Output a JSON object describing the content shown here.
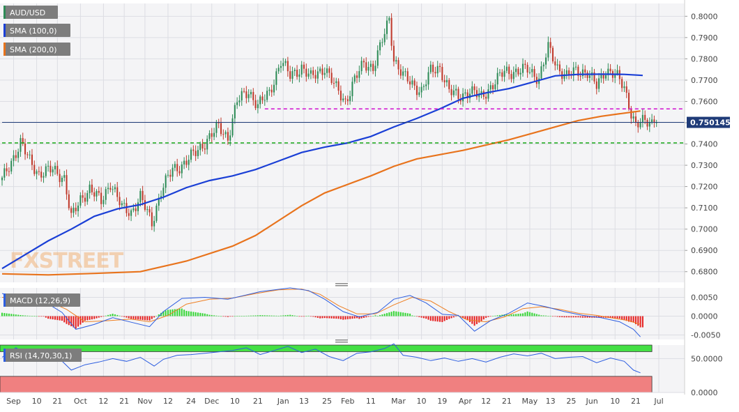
{
  "colors": {
    "background": "#ffffff",
    "panel": "#f4f4f6",
    "grid": "#dcdde3",
    "axis_text": "#444444",
    "bull": "#2e8b57",
    "bear": "#c0392b",
    "sma100": "#1a3fd6",
    "sma200": "#e8731c",
    "level_magenta": "#d21fd2",
    "level_green": "#17a817",
    "last_price_line": "#1f3b78",
    "last_price_tag": "#1f3b78",
    "macd_line": "#2c5de0",
    "signal_line": "#ee7f22",
    "hist_pos": "#36d636",
    "hist_neg": "#e62020",
    "rsi_line": "#2c5de0",
    "rsi_overbought_zone": "#44e044",
    "rsi_oversold_zone": "#f08080"
  },
  "legend": {
    "symbol": "AUD/USD",
    "sma100": "SMA (100,0)",
    "sma200": "SMA (200,0)",
    "macd": "MACD (12,26,9)",
    "rsi": "RSI (14,70,30,1)"
  },
  "watermark": "FXSTREET",
  "last_price_label": "0.750145",
  "chart_data": [
    {
      "type": "candlestick",
      "panel": "price",
      "ylim": [
        0.675,
        0.806
      ],
      "y_ticks": [
        "0.6800",
        "0.6900",
        "0.7000",
        "0.7100",
        "0.7200",
        "0.7300",
        "0.7400",
        "0.7500",
        "0.7600",
        "0.7700",
        "0.7800",
        "0.7900",
        "0.8000"
      ],
      "y_tick_values": [
        0.68,
        0.69,
        0.7,
        0.71,
        0.72,
        0.73,
        0.74,
        0.75,
        0.76,
        0.77,
        0.78,
        0.79,
        0.8
      ],
      "x_tick_labels": [
        "Sep",
        "10",
        "21",
        "Oct",
        "12",
        "21",
        "Nov",
        "12",
        "24",
        "Dec",
        "10",
        "21",
        "Jan",
        "13",
        "25",
        "Feb",
        "11",
        "Mar",
        "10",
        "19",
        "Apr",
        "12",
        "21",
        "May",
        "13",
        "25",
        "Jun",
        "10",
        "21",
        "Jul"
      ],
      "x_tick_index": [
        5,
        15,
        24,
        34,
        44,
        53,
        62,
        72,
        82,
        91,
        101,
        111,
        122,
        131,
        141,
        150,
        160,
        172,
        182,
        191,
        201,
        210,
        219,
        229,
        238,
        247,
        256,
        266,
        275,
        285
      ],
      "n_bars": 285,
      "close_path": [
        [
          0,
          0.723
        ],
        [
          5,
          0.734
        ],
        [
          8,
          0.7405
        ],
        [
          12,
          0.732
        ],
        [
          16,
          0.726
        ],
        [
          22,
          0.728
        ],
        [
          27,
          0.724
        ],
        [
          30,
          0.705
        ],
        [
          34,
          0.714
        ],
        [
          38,
          0.719
        ],
        [
          43,
          0.713
        ],
        [
          47,
          0.722
        ],
        [
          52,
          0.71
        ],
        [
          56,
          0.708
        ],
        [
          60,
          0.715
        ],
        [
          65,
          0.703
        ],
        [
          69,
          0.718
        ],
        [
          74,
          0.728
        ],
        [
          78,
          0.73
        ],
        [
          84,
          0.736
        ],
        [
          89,
          0.742
        ],
        [
          94,
          0.748
        ],
        [
          98,
          0.743
        ],
        [
          102,
          0.76
        ],
        [
          107,
          0.765
        ],
        [
          111,
          0.758
        ],
        [
          116,
          0.764
        ],
        [
          121,
          0.779
        ],
        [
          125,
          0.772
        ],
        [
          130,
          0.776
        ],
        [
          134,
          0.771
        ],
        [
          140,
          0.776
        ],
        [
          145,
          0.766
        ],
        [
          149,
          0.76
        ],
        [
          153,
          0.77
        ],
        [
          157,
          0.778
        ],
        [
          161,
          0.776
        ],
        [
          164,
          0.785
        ],
        [
          168,
          0.799
        ],
        [
          170,
          0.78
        ],
        [
          174,
          0.772
        ],
        [
          178,
          0.768
        ],
        [
          182,
          0.765
        ],
        [
          186,
          0.774
        ],
        [
          190,
          0.776
        ],
        [
          194,
          0.765
        ],
        [
          198,
          0.762
        ],
        [
          203,
          0.765
        ],
        [
          208,
          0.762
        ],
        [
          213,
          0.768
        ],
        [
          218,
          0.774
        ],
        [
          223,
          0.774
        ],
        [
          228,
          0.775
        ],
        [
          233,
          0.771
        ],
        [
          237,
          0.785
        ],
        [
          241,
          0.776
        ],
        [
          245,
          0.772
        ],
        [
          249,
          0.774
        ],
        [
          254,
          0.774
        ],
        [
          258,
          0.767
        ],
        [
          262,
          0.775
        ],
        [
          266,
          0.773
        ],
        [
          270,
          0.766
        ],
        [
          273,
          0.755
        ],
        [
          275,
          0.7492
        ],
        [
          277,
          0.7501
        ]
      ],
      "sma100": [
        [
          0,
          0.6815
        ],
        [
          10,
          0.688
        ],
        [
          20,
          0.6945
        ],
        [
          30,
          0.7
        ],
        [
          40,
          0.706
        ],
        [
          50,
          0.7095
        ],
        [
          60,
          0.7115
        ],
        [
          70,
          0.715
        ],
        [
          80,
          0.7195
        ],
        [
          90,
          0.7228
        ],
        [
          100,
          0.725
        ],
        [
          110,
          0.728
        ],
        [
          120,
          0.732
        ],
        [
          130,
          0.736
        ],
        [
          140,
          0.7385
        ],
        [
          150,
          0.7405
        ],
        [
          160,
          0.7435
        ],
        [
          170,
          0.748
        ],
        [
          180,
          0.752
        ],
        [
          190,
          0.7565
        ],
        [
          200,
          0.7615
        ],
        [
          210,
          0.764
        ],
        [
          220,
          0.766
        ],
        [
          230,
          0.769
        ],
        [
          240,
          0.772
        ],
        [
          250,
          0.7727
        ],
        [
          260,
          0.7728
        ],
        [
          270,
          0.7727
        ],
        [
          278,
          0.7722
        ]
      ],
      "sma200": [
        [
          0,
          0.679
        ],
        [
          20,
          0.6785
        ],
        [
          40,
          0.6792
        ],
        [
          60,
          0.68
        ],
        [
          80,
          0.685
        ],
        [
          100,
          0.692
        ],
        [
          110,
          0.697
        ],
        [
          120,
          0.704
        ],
        [
          130,
          0.711
        ],
        [
          140,
          0.717
        ],
        [
          150,
          0.721
        ],
        [
          160,
          0.725
        ],
        [
          170,
          0.7295
        ],
        [
          180,
          0.733
        ],
        [
          190,
          0.735
        ],
        [
          200,
          0.737
        ],
        [
          210,
          0.7395
        ],
        [
          220,
          0.742
        ],
        [
          230,
          0.745
        ],
        [
          240,
          0.748
        ],
        [
          250,
          0.751
        ],
        [
          260,
          0.753
        ],
        [
          270,
          0.7545
        ],
        [
          277,
          0.7555
        ]
      ],
      "levels": [
        {
          "name": "resistance-magenta",
          "value": 0.7565,
          "from_bar": 114,
          "style": "dashed"
        },
        {
          "name": "support-green",
          "value": 0.7405,
          "from_bar": 0,
          "style": "dashed"
        },
        {
          "name": "last-price",
          "value": 0.750145,
          "from_bar": 0,
          "style": "solid"
        }
      ]
    },
    {
      "type": "line",
      "panel": "macd",
      "ylim": [
        -0.0062,
        0.0075
      ],
      "y_ticks": [
        "0.0050",
        "0.0000",
        "-0.0050"
      ],
      "y_tick_values": [
        0.005,
        0.0,
        -0.005
      ],
      "macd": [
        [
          0,
          0.006
        ],
        [
          8,
          0.005
        ],
        [
          18,
          0.004
        ],
        [
          26,
          0.001
        ],
        [
          32,
          -0.0035
        ],
        [
          40,
          -0.0022
        ],
        [
          48,
          -0.0004
        ],
        [
          56,
          -0.0016
        ],
        [
          64,
          -0.0028
        ],
        [
          70,
          0.0012
        ],
        [
          78,
          0.0047
        ],
        [
          88,
          0.005
        ],
        [
          98,
          0.0045
        ],
        [
          105,
          0.0055
        ],
        [
          112,
          0.0065
        ],
        [
          125,
          0.0075
        ],
        [
          133,
          0.0068
        ],
        [
          140,
          0.0045
        ],
        [
          148,
          0.0012
        ],
        [
          155,
          -0.0002
        ],
        [
          163,
          0.001
        ],
        [
          170,
          0.0045
        ],
        [
          177,
          0.0055
        ],
        [
          184,
          0.0035
        ],
        [
          191,
          0.0005
        ],
        [
          198,
          0.0002
        ],
        [
          205,
          -0.004
        ],
        [
          212,
          -0.0012
        ],
        [
          220,
          0.0008
        ],
        [
          228,
          0.0035
        ],
        [
          236,
          0.0025
        ],
        [
          244,
          0.0012
        ],
        [
          252,
          0.0002
        ],
        [
          260,
          -0.0004
        ],
        [
          268,
          -0.0015
        ],
        [
          274,
          -0.0035
        ],
        [
          277,
          -0.0055
        ]
      ],
      "signal": [
        [
          0,
          0.005
        ],
        [
          10,
          0.0046
        ],
        [
          20,
          0.004
        ],
        [
          28,
          0.0018
        ],
        [
          36,
          -0.0015
        ],
        [
          46,
          -0.0012
        ],
        [
          56,
          -0.0008
        ],
        [
          64,
          -0.0015
        ],
        [
          72,
          0.0002
        ],
        [
          80,
          0.0032
        ],
        [
          90,
          0.0045
        ],
        [
          100,
          0.0048
        ],
        [
          110,
          0.006
        ],
        [
          120,
          0.007
        ],
        [
          130,
          0.0072
        ],
        [
          138,
          0.0058
        ],
        [
          146,
          0.0028
        ],
        [
          154,
          0.0006
        ],
        [
          162,
          0.0006
        ],
        [
          170,
          0.003
        ],
        [
          178,
          0.005
        ],
        [
          186,
          0.004
        ],
        [
          194,
          0.0012
        ],
        [
          202,
          -0.001
        ],
        [
          210,
          -0.0015
        ],
        [
          218,
          -0.0002
        ],
        [
          226,
          0.002
        ],
        [
          234,
          0.0025
        ],
        [
          242,
          0.0018
        ],
        [
          250,
          0.0008
        ],
        [
          258,
          0.0002
        ],
        [
          266,
          -0.0006
        ],
        [
          272,
          -0.0012
        ],
        [
          277,
          -0.0022
        ]
      ]
    },
    {
      "type": "line",
      "panel": "rsi",
      "ylim": [
        0,
        70
      ],
      "y_ticks": [
        "50.0000",
        "0.0000"
      ],
      "y_tick_values": [
        50,
        0
      ],
      "overbought": 70,
      "oversold": 30,
      "rsi": [
        [
          0,
          52
        ],
        [
          6,
          66
        ],
        [
          12,
          54
        ],
        [
          18,
          46
        ],
        [
          24,
          53
        ],
        [
          30,
          33
        ],
        [
          36,
          41
        ],
        [
          42,
          45
        ],
        [
          48,
          50
        ],
        [
          54,
          46
        ],
        [
          60,
          52
        ],
        [
          66,
          39
        ],
        [
          70,
          49
        ],
        [
          76,
          55
        ],
        [
          82,
          56
        ],
        [
          88,
          58
        ],
        [
          94,
          60
        ],
        [
          100,
          62
        ],
        [
          106,
          66
        ],
        [
          112,
          56
        ],
        [
          118,
          62
        ],
        [
          124,
          68
        ],
        [
          130,
          59
        ],
        [
          136,
          64
        ],
        [
          142,
          53
        ],
        [
          148,
          47
        ],
        [
          154,
          58
        ],
        [
          160,
          60
        ],
        [
          166,
          65
        ],
        [
          170,
          72
        ],
        [
          174,
          55
        ],
        [
          180,
          52
        ],
        [
          186,
          47
        ],
        [
          192,
          51
        ],
        [
          198,
          46
        ],
        [
          204,
          50
        ],
        [
          210,
          45
        ],
        [
          216,
          52
        ],
        [
          222,
          57
        ],
        [
          228,
          54
        ],
        [
          234,
          58
        ],
        [
          240,
          50
        ],
        [
          246,
          52
        ],
        [
          252,
          53
        ],
        [
          258,
          44
        ],
        [
          264,
          51
        ],
        [
          270,
          46
        ],
        [
          274,
          33
        ],
        [
          277,
          29
        ]
      ]
    }
  ]
}
